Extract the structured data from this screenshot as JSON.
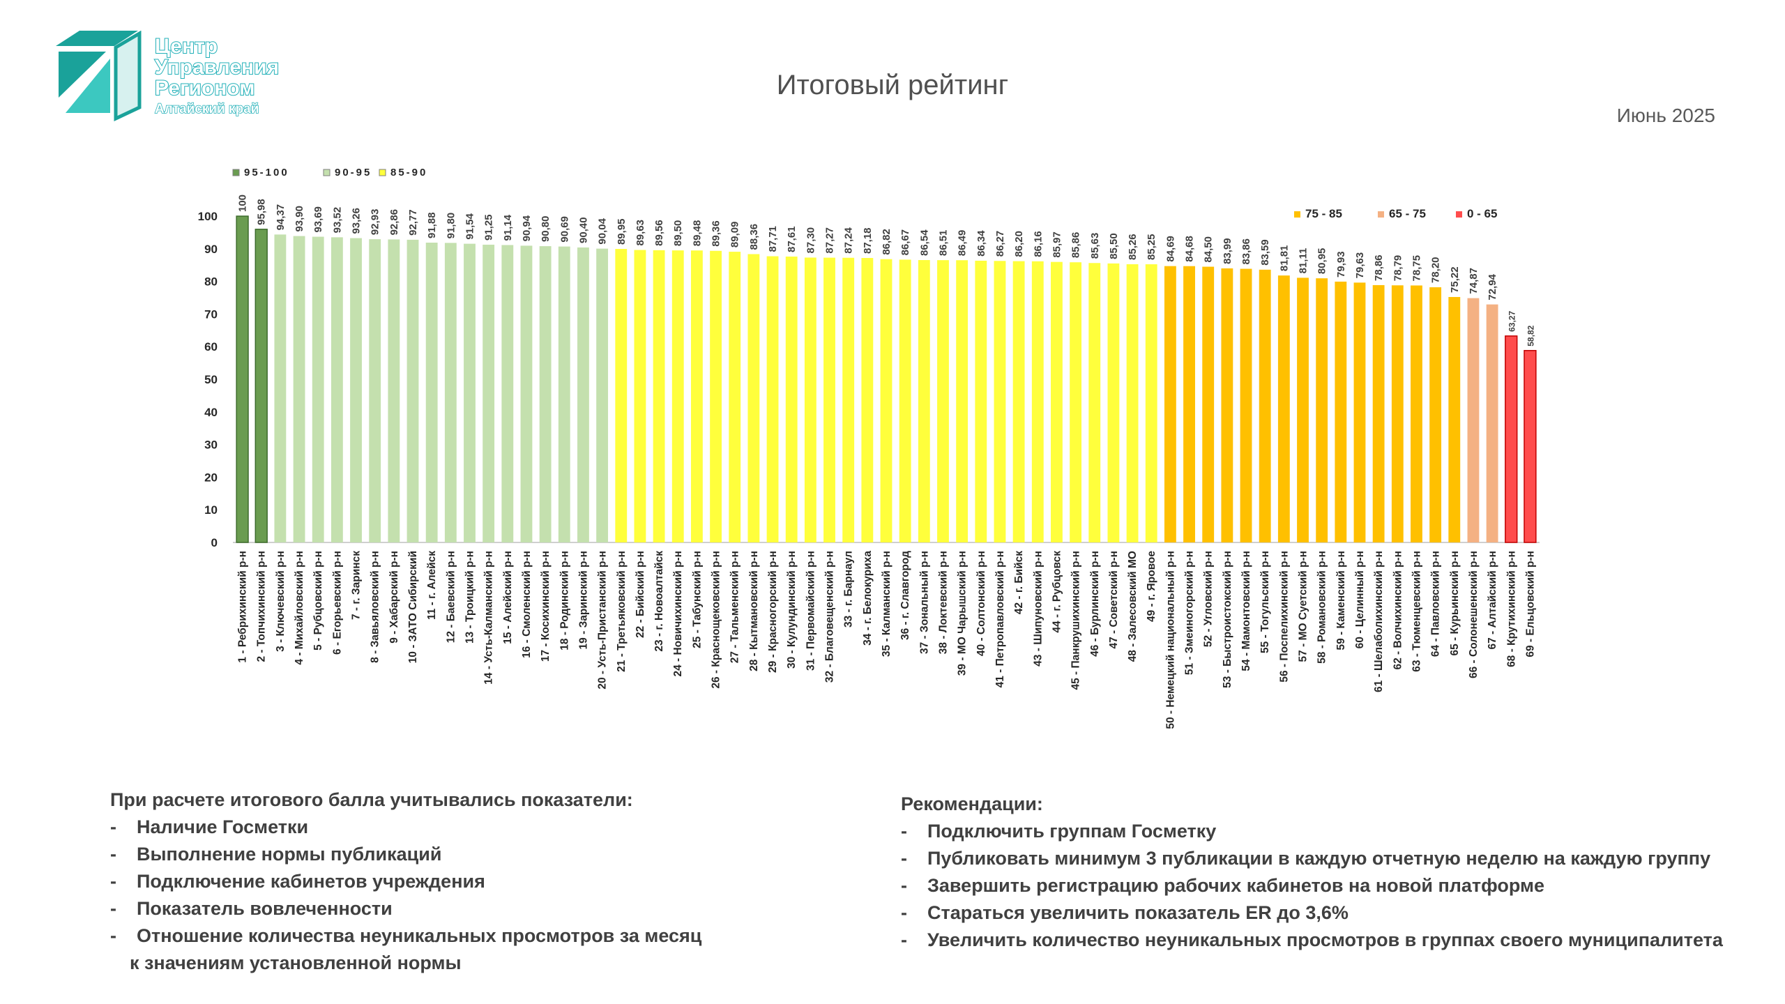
{
  "logo": {
    "lines": [
      "Центр",
      "Управления",
      "Регионом"
    ],
    "subtitle": "Алтайский край",
    "colors": {
      "dark": "#1aa29a",
      "light": "#3cc8c0",
      "text_outline": "#22b0b8"
    }
  },
  "header": {
    "title": "Итоговый рейтинг",
    "date": "Июнь 2025"
  },
  "chart_data": {
    "type": "bar",
    "ylim": [
      0,
      100
    ],
    "yticks": [
      0,
      10,
      20,
      30,
      40,
      50,
      60,
      70,
      80,
      90,
      100
    ],
    "legend": [
      {
        "label": "95-100",
        "color": "#6a9c50"
      },
      {
        "label": "90-95",
        "color": "#c4e0ae"
      },
      {
        "label": "85-90",
        "color": "#ffff3c"
      },
      {
        "label": "75 - 85",
        "color": "#ffc000"
      },
      {
        "label": "65 - 75",
        "color": "#f4b183"
      },
      {
        "label": "0 - 65",
        "color": "#ff4d4d"
      }
    ],
    "categories": [
      "1 - Ребрихинский р-н",
      "2 - Топчихинский р-н",
      "3 - Ключевский р-н",
      "4 - Михайловский р-н",
      "5 - Рубцовский р-н",
      "6 - Егорьевский р-н",
      "7 - г. Заринск",
      "8 - Завьяловский р-н",
      "9 - Хабарский р-н",
      "10 - ЗАТО Сибирский",
      "11 - г. Алейск",
      "12 - Баевский р-н",
      "13 - Троицкий р-н",
      "14 - Усть-Калманский р-н",
      "15 - Алейский р-н",
      "16 - Смоленский р-н",
      "17 - Косихинский р-н",
      "18 - Родинский р-н",
      "19 - Заринский р-н",
      "20 - Усть-Пристанский р-н",
      "21 - Третьяковский р-н",
      "22 - Бийский р-н",
      "23 - г. Новоалтайск",
      "24 - Новичихинский р-н",
      "25 - Табунский р-н",
      "26 - Краснощековский р-н",
      "27 - Тальменский р-н",
      "28 - Кытмановский р-н",
      "29 - Красногорский р-н",
      "30 - Кулундинский р-н",
      "31 - Первомайский р-н",
      "32 - Благовещенский р-н",
      "33 - г. Барнаул",
      "34 - г. Белокуриха",
      "35 - Калманский р-н",
      "36 - г. Славгород",
      "37 - Зональный р-н",
      "38 - Локтевский р-н",
      "39 - МО Чарышский р-н",
      "40 - Солтонский р-н",
      "41 - Петропавловский р-н",
      "42 - г. Бийск",
      "43 - Шипуновский р-н",
      "44 - г. Рубцовск",
      "45 - Панкрушихинский р-н",
      "46 - Бурлинский р-н",
      "47 - Советский р-н",
      "48 - Залесовский МО",
      "49 - г. Яровое",
      "50 - Немецкий национальный р-н",
      "51 - Змеиногорский р-н",
      "52 - Угловский р-н",
      "53 - Быстроистокский р-н",
      "54 - Мамонтовский р-н",
      "55 - Тогульский р-н",
      "56 - Поспелихинский р-н",
      "57 - МО Суетский р-н",
      "58 - Романовский р-н",
      "59 - Каменский р-н",
      "60 - Целинный р-н",
      "61 - Шелаболихинский р-н",
      "62 - Волчихинский р-н",
      "63 - Тюменцевский р-н",
      "64 - Павловский р-н",
      "65 - Курьинский р-н",
      "66 - Солонешенский р-н",
      "67 - Алтайский р-н",
      "68 - Крутихинский р-н",
      "69 - Ельцовский р-н"
    ],
    "values": [
      100,
      95.98,
      94.37,
      93.9,
      93.69,
      93.52,
      93.26,
      92.93,
      92.86,
      92.77,
      91.88,
      91.8,
      91.54,
      91.25,
      91.14,
      90.94,
      90.8,
      90.69,
      90.4,
      90.04,
      89.95,
      89.63,
      89.56,
      89.5,
      89.48,
      89.36,
      89.09,
      88.36,
      87.71,
      87.61,
      87.3,
      87.27,
      87.24,
      87.18,
      86.82,
      86.67,
      86.54,
      86.51,
      86.49,
      86.34,
      86.27,
      86.2,
      86.16,
      85.97,
      85.86,
      85.63,
      85.5,
      85.26,
      85.25,
      84.69,
      84.68,
      84.5,
      83.99,
      83.86,
      83.59,
      81.81,
      81.11,
      80.95,
      79.93,
      79.63,
      78.86,
      78.79,
      78.75,
      78.2,
      75.22,
      74.87,
      72.94,
      63.27,
      58.82
    ],
    "value_labels": [
      "100",
      "95,98",
      "94,37",
      "93,90",
      "93,69",
      "93,52",
      "93,26",
      "92,93",
      "92,86",
      "92,77",
      "91,88",
      "91,80",
      "91,54",
      "91,25",
      "91,14",
      "90,94",
      "90,80",
      "90,69",
      "90,40",
      "90,04",
      "89,95",
      "89,63",
      "89,56",
      "89,50",
      "89,48",
      "89,36",
      "89,09",
      "88,36",
      "87,71",
      "87,61",
      "87,30",
      "87,27",
      "87,24",
      "87,18",
      "86,82",
      "86,67",
      "86,54",
      "86,51",
      "86,49",
      "86,34",
      "86,27",
      "86,20",
      "86,16",
      "85,97",
      "85,86",
      "85,63",
      "85,50",
      "85,26",
      "85,25",
      "84,69",
      "84,68",
      "84,50",
      "83,99",
      "83,86",
      "83,59",
      "81,81",
      "81,11",
      "80,95",
      "79,93",
      "79,63",
      "78,86",
      "78,79",
      "78,75",
      "78,20",
      "75,22",
      "74,87",
      "72,94",
      "63,27",
      "58,82"
    ],
    "grid": false
  },
  "notes_left": {
    "heading": "При расчете итогового балла учитывались показатели:",
    "items": [
      "Наличие Госметки",
      "Выполнение нормы публикаций",
      "Подключение кабинетов учреждения",
      "Показатель вовлеченности",
      "Отношение количества неуникальных просмотров за месяц"
    ],
    "continuation": "к значениям установленной нормы"
  },
  "notes_right": {
    "heading": "Рекомендации:",
    "items": [
      "Подключить группам Госметку",
      "Публиковать минимум 3 публикации в каждую отчетную неделю на каждую группу",
      "Завершить регистрацию рабочих кабинетов на новой платформе",
      "Стараться увеличить показатель ER до 3,6%",
      "Увеличить количество неуникальных просмотров в группах своего муниципалитета"
    ]
  }
}
